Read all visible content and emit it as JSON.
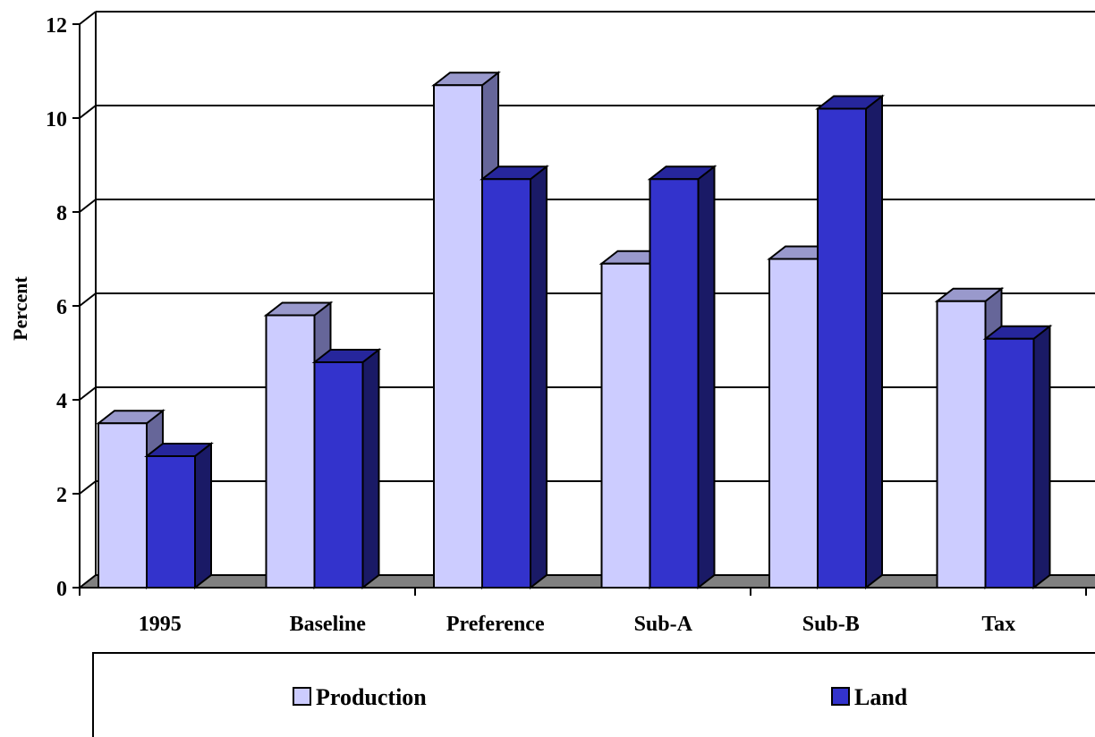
{
  "chart_data": {
    "type": "bar",
    "title": "",
    "xlabel": "",
    "ylabel": "Percent",
    "ylim": [
      0,
      12
    ],
    "yticks": [
      0,
      2,
      4,
      6,
      8,
      10,
      12
    ],
    "grid": true,
    "three_d": true,
    "legend_position": "bottom",
    "categories": [
      "1995",
      "Baseline",
      "Preference",
      "Sub-A",
      "Sub-B",
      "Tax"
    ],
    "series": [
      {
        "name": "Production",
        "values": [
          3.5,
          5.8,
          10.7,
          6.9,
          7.0,
          6.1
        ],
        "color": "#ccccff",
        "side_color": "#666699",
        "top_color": "#9999cc"
      },
      {
        "name": "Land",
        "values": [
          2.8,
          4.8,
          8.7,
          8.7,
          10.2,
          5.3
        ],
        "color": "#3333cc",
        "side_color": "#1a1a66",
        "top_color": "#26269c"
      }
    ],
    "floor_color": "#808080"
  }
}
